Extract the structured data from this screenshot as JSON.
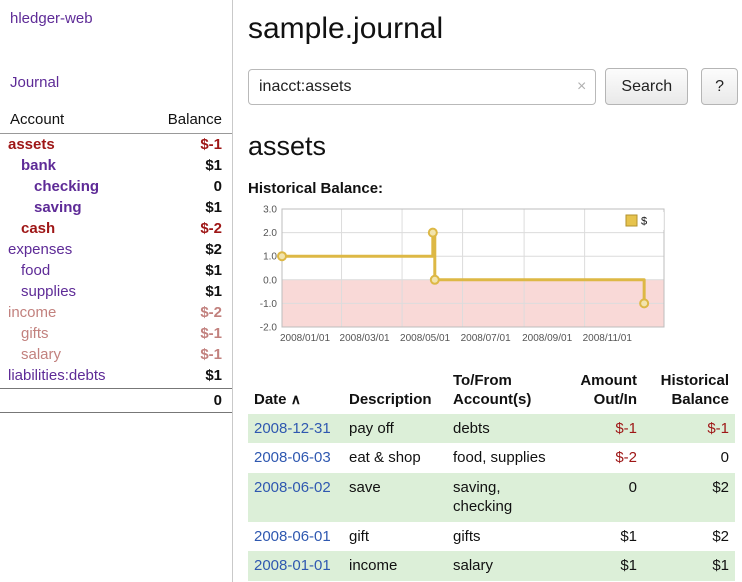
{
  "app": {
    "title": "hledger-web",
    "nav_journal": "Journal"
  },
  "header": {
    "title": "sample.journal"
  },
  "search": {
    "value": "inacct:assets",
    "clear_icon": "×",
    "button": "Search",
    "help_button": "?"
  },
  "main": {
    "account_heading": "assets",
    "chart_label": "Historical Balance:"
  },
  "sidebar": {
    "table_headers": {
      "account": "Account",
      "balance": "Balance"
    },
    "accounts": [
      {
        "name": "assets",
        "level": 0,
        "balance": "$-1",
        "in_view": true
      },
      {
        "name": "bank",
        "level": 1,
        "balance": "$1",
        "in_view": true
      },
      {
        "name": "checking",
        "level": 2,
        "balance": "0",
        "in_view": true
      },
      {
        "name": "saving",
        "level": 2,
        "balance": "$1",
        "in_view": true
      },
      {
        "name": "cash",
        "level": 1,
        "balance": "$-2",
        "in_view": true
      },
      {
        "name": "expenses",
        "level": 0,
        "balance": "$2",
        "in_view": false
      },
      {
        "name": "food",
        "level": 1,
        "balance": "$1",
        "in_view": false
      },
      {
        "name": "supplies",
        "level": 1,
        "balance": "$1",
        "in_view": false
      },
      {
        "name": "income",
        "level": 0,
        "balance": "$-2",
        "in_view": false
      },
      {
        "name": "gifts",
        "level": 1,
        "balance": "$-1",
        "in_view": false
      },
      {
        "name": "salary",
        "level": 1,
        "balance": "$-1",
        "in_view": false
      },
      {
        "name": "liabilities:debts",
        "level": 0,
        "balance": "$1",
        "in_view": false
      }
    ],
    "total": "0"
  },
  "chart_data": {
    "type": "line",
    "step": true,
    "title": "Historical Balance",
    "legend": [
      {
        "label": "$",
        "color": "#e6c34d"
      }
    ],
    "x_domain": [
      "2008-01-01",
      "2009-01-20"
    ],
    "xticks": [
      "2008/01/01",
      "2008/03/01",
      "2008/05/01",
      "2008/07/01",
      "2008/09/01",
      "2008/11/01"
    ],
    "yticks": [
      3.0,
      2.0,
      1.0,
      0.0,
      -1.0,
      -2.0
    ],
    "ylim": [
      -2,
      3
    ],
    "series": [
      {
        "name": "$",
        "points": [
          {
            "date": "2008-01-01",
            "value": 1
          },
          {
            "date": "2008-06-01",
            "value": 2
          },
          {
            "date": "2008-06-03",
            "value": 0
          },
          {
            "date": "2008-12-31",
            "value": -1
          }
        ]
      }
    ],
    "negative_region": true,
    "grid": true,
    "legend_position": "top-right"
  },
  "register": {
    "headers": {
      "date": "Date",
      "sort_indicator": "∧",
      "description": "Description",
      "accounts": "To/From Account(s)",
      "amount": "Amount Out/In",
      "balance": "Historical Balance"
    },
    "rows": [
      {
        "date": "2008-12-31",
        "description": "pay off",
        "accounts": "debts",
        "amount": "$-1",
        "balance": "$-1"
      },
      {
        "date": "2008-06-03",
        "description": "eat & shop",
        "accounts": "food, supplies",
        "amount": "$-2",
        "balance": "0"
      },
      {
        "date": "2008-06-02",
        "description": "save",
        "accounts": "saving, checking",
        "amount": "0",
        "balance": "$2"
      },
      {
        "date": "2008-06-01",
        "description": "gift",
        "accounts": "gifts",
        "amount": "$1",
        "balance": "$2"
      },
      {
        "date": "2008-01-01",
        "description": "income",
        "accounts": "salary",
        "amount": "$1",
        "balance": "$1"
      }
    ]
  },
  "colors": {
    "link_purple": "#5e2b97",
    "date_link": "#2f58b0",
    "negative_strong": "#9e1616",
    "negative_soft": "#c2817e",
    "row_green": "#dcefd8",
    "chart_line": "#ddb845",
    "chart_marker_fill": "#f2e4ad",
    "chart_negative_fill": "#f9d9d7",
    "legend_swatch": "#e6c34d"
  }
}
